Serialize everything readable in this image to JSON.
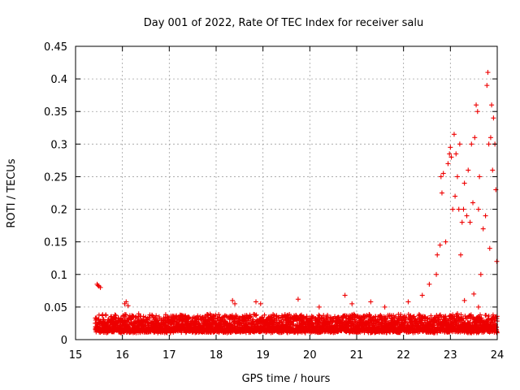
{
  "chart_data": {
    "type": "scatter",
    "title": "Day 001 of 2022, Rate Of TEC Index for receiver salu",
    "xlabel": "GPS time / hours",
    "ylabel": "ROTI / TECUs",
    "xlim": [
      15,
      24
    ],
    "ylim": [
      0,
      0.45
    ],
    "x_ticks": [
      "15",
      "16",
      "17",
      "18",
      "19",
      "20",
      "21",
      "22",
      "23",
      "24"
    ],
    "y_ticks": [
      "0",
      "0.05",
      "0.1",
      "0.15",
      "0.2",
      "0.25",
      "0.3",
      "0.35",
      "0.4",
      "0.45"
    ],
    "grid": true,
    "marker": "+",
    "series": [
      {
        "name": "ROTI",
        "color": "#ee0000",
        "band": {
          "x_range": [
            15.42,
            24.0
          ],
          "typical_y_range": [
            0.005,
            0.04
          ],
          "description": "dense band of low ROTI values"
        },
        "points": [
          [
            15.46,
            0.085
          ],
          [
            15.48,
            0.083
          ],
          [
            15.5,
            0.082
          ],
          [
            15.53,
            0.08
          ],
          [
            16.05,
            0.055
          ],
          [
            16.08,
            0.058
          ],
          [
            16.12,
            0.052
          ],
          [
            18.35,
            0.06
          ],
          [
            18.4,
            0.055
          ],
          [
            18.85,
            0.058
          ],
          [
            18.95,
            0.055
          ],
          [
            19.75,
            0.062
          ],
          [
            20.2,
            0.05
          ],
          [
            20.75,
            0.068
          ],
          [
            20.9,
            0.055
          ],
          [
            21.3,
            0.058
          ],
          [
            21.6,
            0.05
          ],
          [
            22.1,
            0.058
          ],
          [
            22.4,
            0.068
          ],
          [
            22.55,
            0.085
          ],
          [
            22.7,
            0.1
          ],
          [
            22.72,
            0.13
          ],
          [
            22.78,
            0.145
          ],
          [
            22.8,
            0.25
          ],
          [
            22.82,
            0.225
          ],
          [
            22.85,
            0.255
          ],
          [
            22.9,
            0.15
          ],
          [
            22.95,
            0.27
          ],
          [
            22.98,
            0.285
          ],
          [
            23.0,
            0.295
          ],
          [
            23.02,
            0.28
          ],
          [
            23.05,
            0.2
          ],
          [
            23.08,
            0.315
          ],
          [
            23.1,
            0.22
          ],
          [
            23.12,
            0.285
          ],
          [
            23.15,
            0.25
          ],
          [
            23.18,
            0.2
          ],
          [
            23.2,
            0.3
          ],
          [
            23.22,
            0.13
          ],
          [
            23.25,
            0.18
          ],
          [
            23.28,
            0.2
          ],
          [
            23.3,
            0.24
          ],
          [
            23.35,
            0.19
          ],
          [
            23.38,
            0.26
          ],
          [
            23.42,
            0.18
          ],
          [
            23.45,
            0.3
          ],
          [
            23.48,
            0.21
          ],
          [
            23.52,
            0.31
          ],
          [
            23.55,
            0.36
          ],
          [
            23.58,
            0.35
          ],
          [
            23.6,
            0.2
          ],
          [
            23.62,
            0.25
          ],
          [
            23.65,
            0.1
          ],
          [
            23.7,
            0.17
          ],
          [
            23.75,
            0.19
          ],
          [
            23.78,
            0.39
          ],
          [
            23.8,
            0.41
          ],
          [
            23.82,
            0.3
          ],
          [
            23.84,
            0.14
          ],
          [
            23.86,
            0.31
          ],
          [
            23.88,
            0.36
          ],
          [
            23.9,
            0.26
          ],
          [
            23.92,
            0.34
          ],
          [
            23.95,
            0.3
          ],
          [
            23.97,
            0.23
          ],
          [
            23.99,
            0.12
          ],
          [
            23.8,
            0.03
          ],
          [
            23.85,
            0.02
          ],
          [
            23.6,
            0.05
          ],
          [
            23.5,
            0.07
          ],
          [
            23.3,
            0.06
          ],
          [
            23.15,
            0.04
          ]
        ]
      }
    ]
  }
}
